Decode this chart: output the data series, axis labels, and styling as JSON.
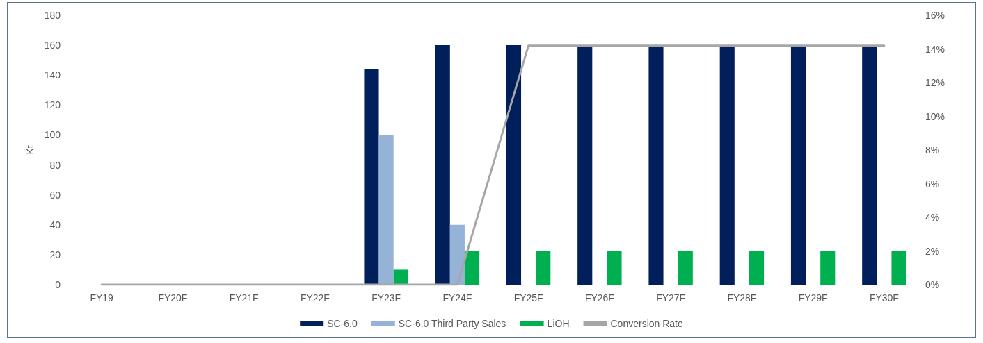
{
  "chart_data": {
    "type": "bar",
    "ylabel": "Kt",
    "categories": [
      "FY19",
      "FY20F",
      "FY21F",
      "FY22F",
      "FY23F",
      "FY24F",
      "FY25F",
      "FY26F",
      "FY27F",
      "FY28F",
      "FY29F",
      "FY30F"
    ],
    "series": [
      {
        "name": "SC-6.0",
        "color": "#001f5b",
        "values": [
          null,
          null,
          null,
          null,
          144,
          160,
          160,
          160,
          160,
          160,
          160,
          160
        ]
      },
      {
        "name": "SC-6.0 Third Party Sales",
        "color": "#95b3d7",
        "values": [
          null,
          null,
          null,
          null,
          100,
          40,
          null,
          null,
          null,
          null,
          null,
          null
        ]
      },
      {
        "name": "LiOH",
        "color": "#00b050",
        "values": [
          null,
          null,
          null,
          null,
          10,
          22.5,
          22.5,
          22.5,
          22.5,
          22.5,
          22.5,
          22.5
        ]
      },
      {
        "name": "Conversion Rate",
        "type": "line",
        "axis": "y2",
        "color": "#a6a6a6",
        "values": [
          0,
          0,
          0,
          0,
          0,
          0,
          14.2,
          14.2,
          14.2,
          14.2,
          14.2,
          14.2
        ]
      }
    ],
    "ylim": [
      0,
      180
    ],
    "yticks": [
      0,
      20,
      40,
      60,
      80,
      100,
      120,
      140,
      160,
      180
    ],
    "y2lim": [
      0,
      16
    ],
    "y2ticks": [
      {
        "value": 0,
        "label": "0%"
      },
      {
        "value": 2,
        "label": "2%"
      },
      {
        "value": 4,
        "label": "4%"
      },
      {
        "value": 6,
        "label": "6%"
      },
      {
        "value": 8,
        "label": "8%"
      },
      {
        "value": 10,
        "label": "10%"
      },
      {
        "value": 12,
        "label": "12%"
      },
      {
        "value": 14,
        "label": "14%"
      },
      {
        "value": 16,
        "label": "16%"
      }
    ],
    "grid": false,
    "legend": "bottom",
    "marker": "none",
    "line_style": "solid"
  }
}
